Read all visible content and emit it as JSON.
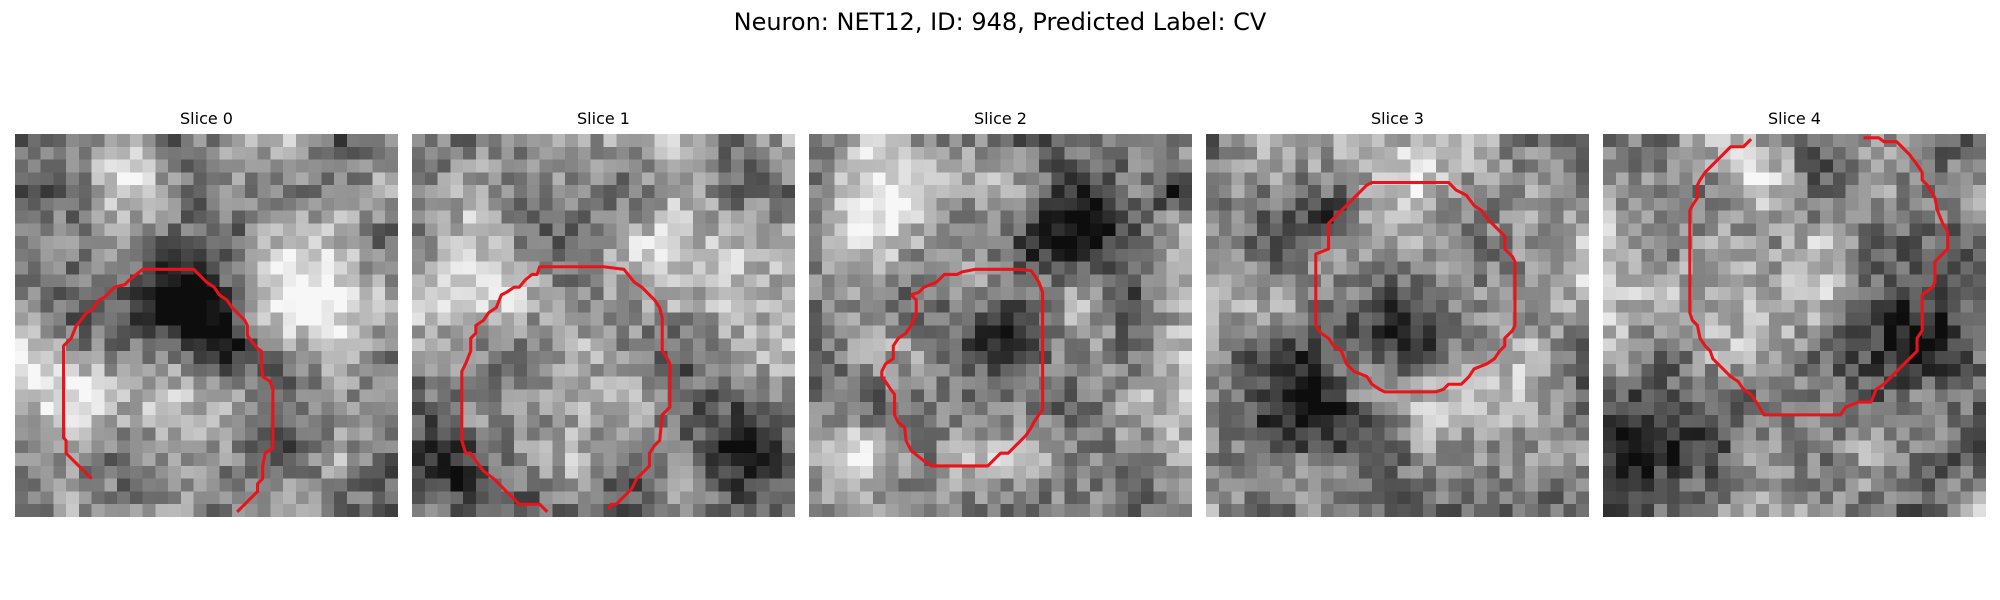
{
  "figure": {
    "title": "Neuron: NET12, ID: 948, Predicted Label: CV"
  },
  "contour_color": "#e8141a",
  "panels": [
    {
      "label": "Slice 0",
      "seed": 11,
      "dark_blobs": [
        [
          0.4,
          0.42,
          0.12
        ],
        [
          0.5,
          0.52,
          0.1
        ]
      ],
      "bright_blobs": [
        [
          0.12,
          0.65,
          0.12
        ],
        [
          0.3,
          0.08,
          0.1
        ],
        [
          0.75,
          0.42,
          0.14
        ]
      ]
    },
    {
      "label": "Slice 1",
      "seed": 23,
      "dark_blobs": [
        [
          0.12,
          0.88,
          0.1
        ],
        [
          0.85,
          0.82,
          0.08
        ]
      ],
      "bright_blobs": [
        [
          0.15,
          0.4,
          0.14
        ],
        [
          0.62,
          0.35,
          0.16
        ]
      ]
    },
    {
      "label": "Slice 2",
      "seed": 37,
      "dark_blobs": [
        [
          0.47,
          0.53,
          0.12
        ],
        [
          0.7,
          0.25,
          0.12
        ],
        [
          0.95,
          0.15,
          0.06
        ]
      ],
      "bright_blobs": [
        [
          0.2,
          0.15,
          0.14
        ],
        [
          0.1,
          0.85,
          0.12
        ],
        [
          0.45,
          0.1,
          0.1
        ]
      ]
    },
    {
      "label": "Slice 3",
      "seed": 51,
      "dark_blobs": [
        [
          0.25,
          0.72,
          0.16
        ],
        [
          0.5,
          0.48,
          0.14
        ],
        [
          0.3,
          0.2,
          0.1
        ]
      ],
      "bright_blobs": [
        [
          0.72,
          0.68,
          0.14
        ],
        [
          0.55,
          0.1,
          0.1
        ],
        [
          0.4,
          0.65,
          0.08
        ]
      ]
    },
    {
      "label": "Slice 4",
      "seed": 67,
      "dark_blobs": [
        [
          0.12,
          0.78,
          0.12
        ],
        [
          0.82,
          0.5,
          0.14
        ]
      ],
      "bright_blobs": [
        [
          0.4,
          0.42,
          0.18
        ],
        [
          0.4,
          0.08,
          0.1
        ]
      ]
    }
  ]
}
